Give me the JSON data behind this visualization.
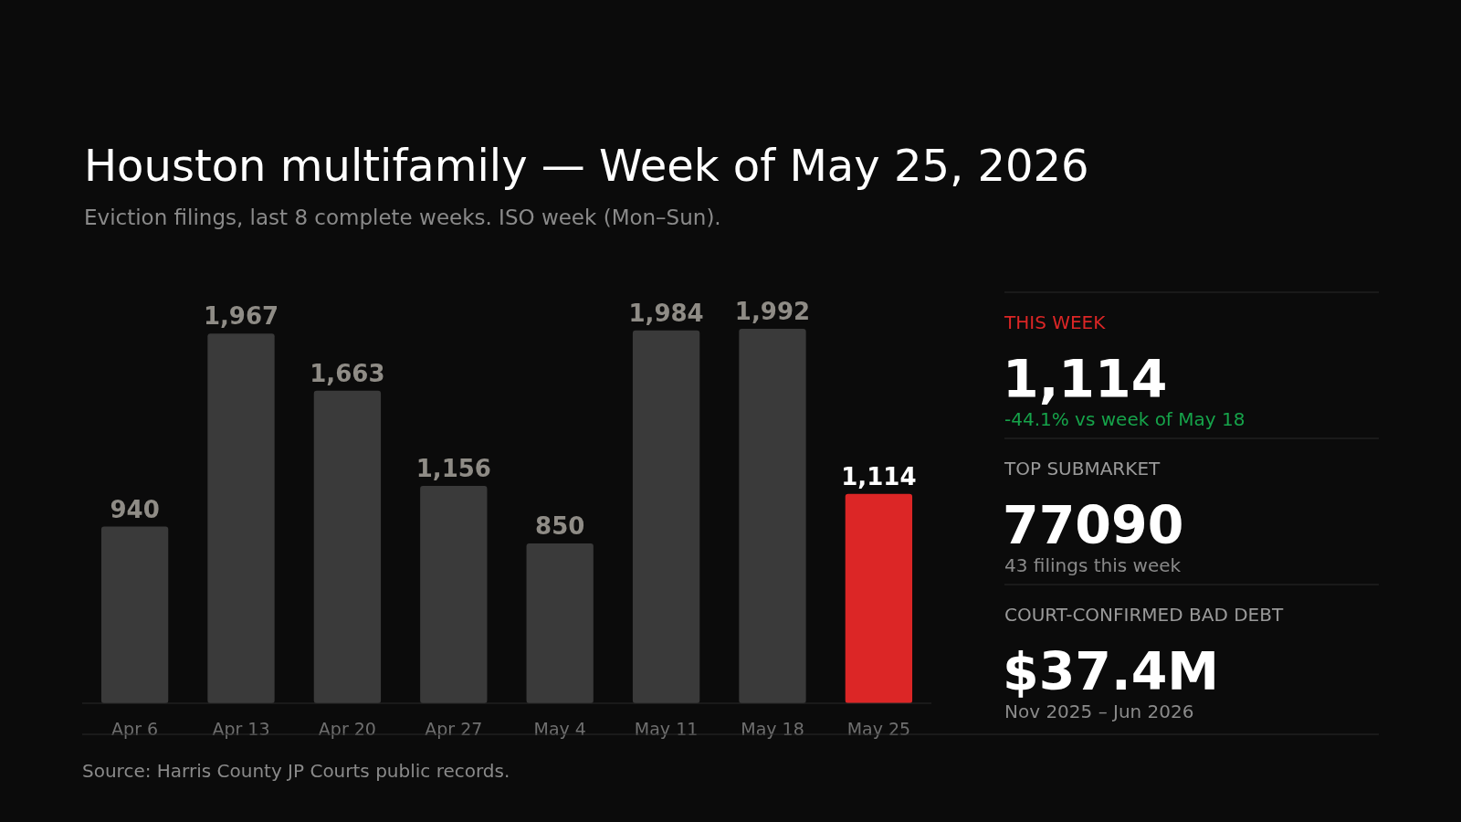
{
  "chart_data": [
    {
      "type": "bar",
      "title": "Houston multifamily — Week of May 25, 2026",
      "subtitle": "Eviction filings, last 8 complete weeks. ISO week (Mon–Sun).",
      "categories": [
        "Apr 6",
        "Apr 13",
        "Apr 20",
        "Apr 27",
        "May 4",
        "May 11",
        "May 18",
        "May 25"
      ],
      "values": [
        940,
        1967,
        1663,
        1156,
        850,
        1984,
        1992,
        1114
      ],
      "colors": [
        "#3a3a3a",
        "#3a3a3a",
        "#3a3a3a",
        "#3a3a3a",
        "#3a3a3a",
        "#3a3a3a",
        "#3a3a3a",
        "#dc2626"
      ],
      "value_labels": [
        "940",
        "1,967",
        "1,663",
        "1,156",
        "850",
        "1,984",
        "1,992",
        "1,114"
      ],
      "annotations": [
        "Source: Harris County JP Courts public records."
      ]
    },
    {
      "type": "other",
      "annotations": [
        "THIS WEEK",
        "1,114",
        "-44.1% vs week of May 18",
        "TOP SUBMARKET",
        "77090",
        "43 filings this week",
        "COURT-CONFIRMED BAD DEBT",
        "$37.4M",
        "Nov 2025 – Jun 2026"
      ]
    }
  ]
}
